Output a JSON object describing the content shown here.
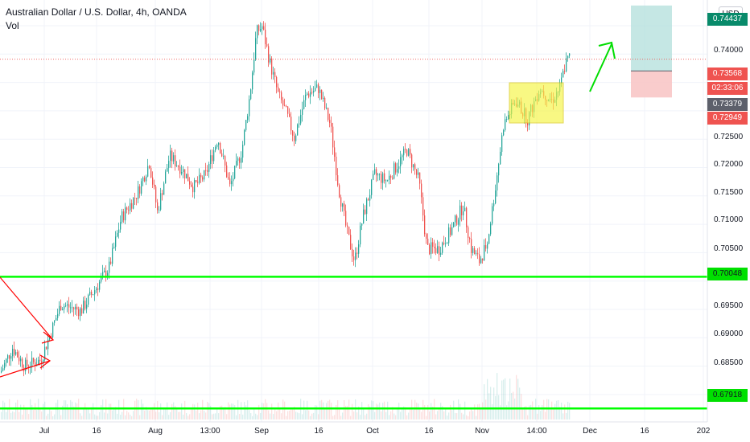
{
  "header": {
    "title": "Australian Dollar / U.S. Dollar, 4h, OANDA",
    "indicator": "Vol",
    "currency": "USD"
  },
  "axis": {
    "y_ticks": [
      "0.74000",
      "0.72500",
      "0.72000",
      "0.71500",
      "0.71000",
      "0.70500",
      "0.69500",
      "0.69000",
      "0.68500"
    ],
    "x_ticks": [
      "Jul",
      "16",
      "Aug",
      "13:00",
      "Sep",
      "16",
      "Oct",
      "16",
      "Nov",
      "14:00",
      "Dec",
      "16",
      "202"
    ]
  },
  "price_labels": {
    "top_partial": "0.74437",
    "current": "0.73568",
    "countdown": "02:33:06",
    "entry": "0.73379",
    "stop": "0.72949",
    "support": "0.70048",
    "lower_support": "0.67918"
  },
  "colors": {
    "up": "#26a69a",
    "down": "#ef5350",
    "hline": "#00ff00",
    "arrow": "#ff0000",
    "highlight": "#f5f542",
    "target_fill": "#b2dfdb",
    "stop_fill": "#f8c6c6"
  },
  "chart_data": {
    "type": "candlestick",
    "y_range": [
      0.677,
      0.745
    ],
    "levels": [
      0.70048,
      0.67918
    ],
    "position": {
      "entry": 0.73379,
      "target": 0.74437,
      "stop": 0.72949
    }
  }
}
